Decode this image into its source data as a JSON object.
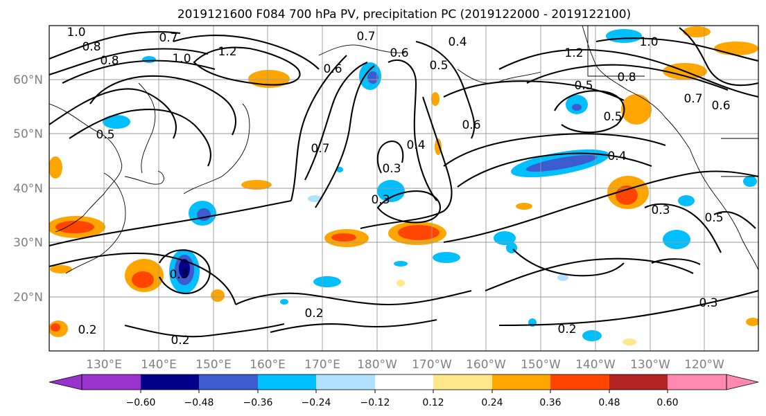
{
  "title": "2019121600 F084 700 hPa PV, precipitation PC (2019122000 - 2019122100)",
  "lat_labels": [
    "60°N",
    "50°N",
    "40°N",
    "30°N",
    "20°N"
  ],
  "lon_labels": [
    "130°E",
    "140°E",
    "150°E",
    "160°E",
    "170°E",
    "180°W",
    "170°W",
    "160°W",
    "150°W",
    "140°W",
    "130°W",
    "120°W"
  ],
  "contour_labels": [
    "1.0",
    "0.8",
    "0.7",
    "0.8",
    "1.0",
    "1.2",
    "0.7",
    "0.6",
    "0.4",
    "0.5",
    "0.6",
    "1.2",
    "1.0",
    "0.8",
    "0.5",
    "0.7",
    "0.6",
    "0.5",
    "0.6",
    "0.5",
    "0.7",
    "0.4",
    "0.3",
    "0.3",
    "0.4",
    "0.3",
    "0.5",
    "0.3",
    "0.2",
    "0.2",
    "0.2",
    "0.3",
    "0.2"
  ],
  "colorbar": {
    "ticks": [
      "−0.60",
      "−0.48",
      "−0.36",
      "−0.24",
      "−0.12",
      "0.12",
      "0.24",
      "0.36",
      "0.48",
      "0.60"
    ],
    "colors": [
      "#9932cc",
      "#00008b",
      "#3b5bcf",
      "#00bfff",
      "#b0e2ff",
      "#ffffff",
      "#ffe78a",
      "#ffa500",
      "#ff4500",
      "#b22222",
      "#ff88b0"
    ]
  }
}
